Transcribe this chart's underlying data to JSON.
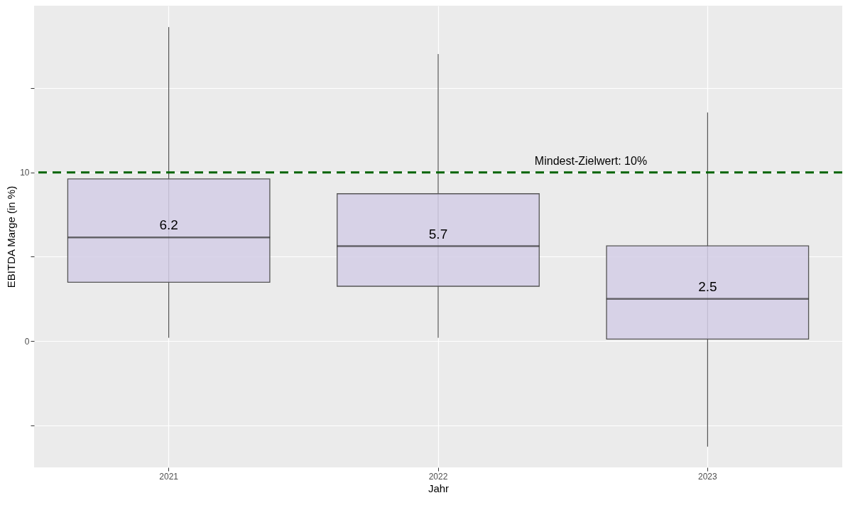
{
  "chart_data": {
    "type": "box",
    "xlabel": "Jahr",
    "ylabel": "EBITDA Marge (in %)",
    "categories": [
      "2021",
      "2022",
      "2023"
    ],
    "series": [
      {
        "color": "#d3cee6",
        "boxes": [
          {
            "low": 0.19,
            "q1": 3.49,
            "median": 6.15,
            "q3": 9.62,
            "high": 18.63
          },
          {
            "low": 0.19,
            "q1": 3.25,
            "median": 5.63,
            "q3": 8.74,
            "high": 17.03
          },
          {
            "low": -6.27,
            "q1": 0.11,
            "median": 2.5,
            "q3": 5.65,
            "high": 13.56
          }
        ]
      }
    ],
    "ylim": [
      -7.5,
      19.9
    ],
    "yticks": [
      {
        "value": -5,
        "label": null
      },
      0,
      {
        "value": 5,
        "label": null
      },
      10,
      {
        "value": 15,
        "label": null
      }
    ],
    "grid": true,
    "ref_lines": [
      {
        "axis": "y",
        "value": 10,
        "label": "Mindest-Zielwert: 10%",
        "color": "#006400",
        "line_style": "dashed"
      }
    ],
    "annotations": [
      {
        "text": "6.2",
        "x": "2021",
        "y": 6.15
      },
      {
        "text": "5.7",
        "x": "2022",
        "y": 5.63
      },
      {
        "text": "2.5",
        "x": "2023",
        "y": 2.5
      }
    ]
  }
}
